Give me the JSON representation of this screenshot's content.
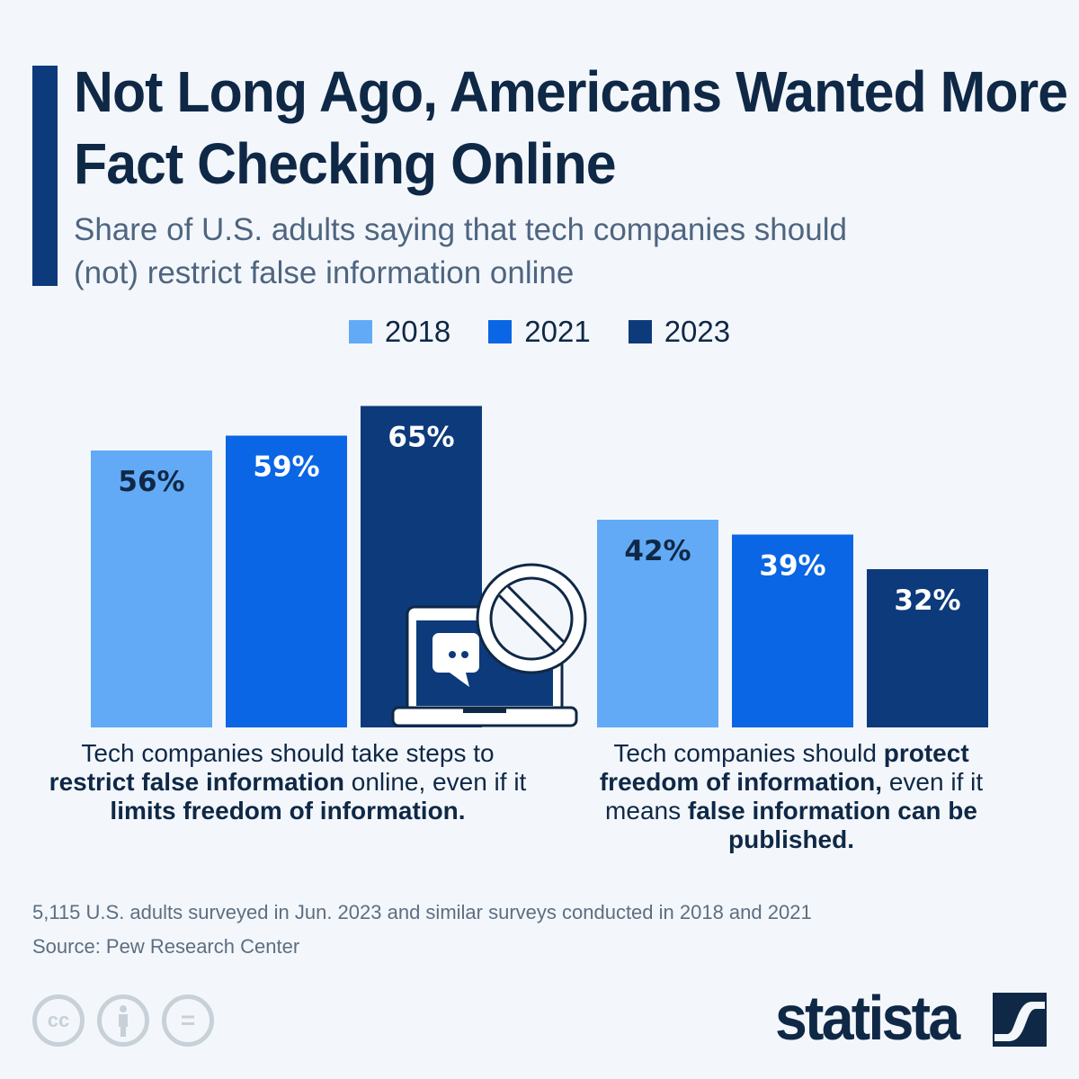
{
  "title": "Not Long Ago, Americans Wanted More Fact Checking Online",
  "subtitle": "Share of U.S. adults saying that tech companies should (not) restrict false information online",
  "chart_data": {
    "type": "bar",
    "categories": [
      "Restrict false information",
      "Protect freedom of information"
    ],
    "series": [
      {
        "name": "2018",
        "color": "#62aaf5",
        "label_color": "#0f2846",
        "values": [
          56,
          42
        ]
      },
      {
        "name": "2021",
        "color": "#0a66e4",
        "label_color": "#ffffff",
        "values": [
          59,
          39
        ]
      },
      {
        "name": "2023",
        "color": "#0d3a7b",
        "label_color": "#ffffff",
        "values": [
          65,
          32
        ]
      }
    ],
    "value_suffix": "%",
    "ylim": [
      0,
      100
    ]
  },
  "captions": [
    [
      {
        "t": "Tech companies should take steps to ",
        "b": false
      },
      {
        "t": "restrict false information",
        "b": true
      },
      {
        "t": " online, even if it ",
        "b": false
      },
      {
        "t": "limits freedom of information.",
        "b": true
      }
    ],
    [
      {
        "t": "Tech companies should ",
        "b": false
      },
      {
        "t": "protect freedom of information,",
        "b": true
      },
      {
        "t": " even if it means ",
        "b": false
      },
      {
        "t": "false information can be published.",
        "b": true
      }
    ]
  ],
  "notes": {
    "survey": "5,115 U.S. adults surveyed in Jun. 2023 and similar surveys conducted in 2018 and 2021",
    "source": "Source: Pew Research Center"
  },
  "footer": {
    "license_icons": [
      "cc-icon",
      "attribution-icon",
      "no-derivatives-icon"
    ],
    "cc_text": "cc",
    "nd_text": "=",
    "logo": "statista"
  },
  "icon": "laptop-chat-prohibited-icon"
}
